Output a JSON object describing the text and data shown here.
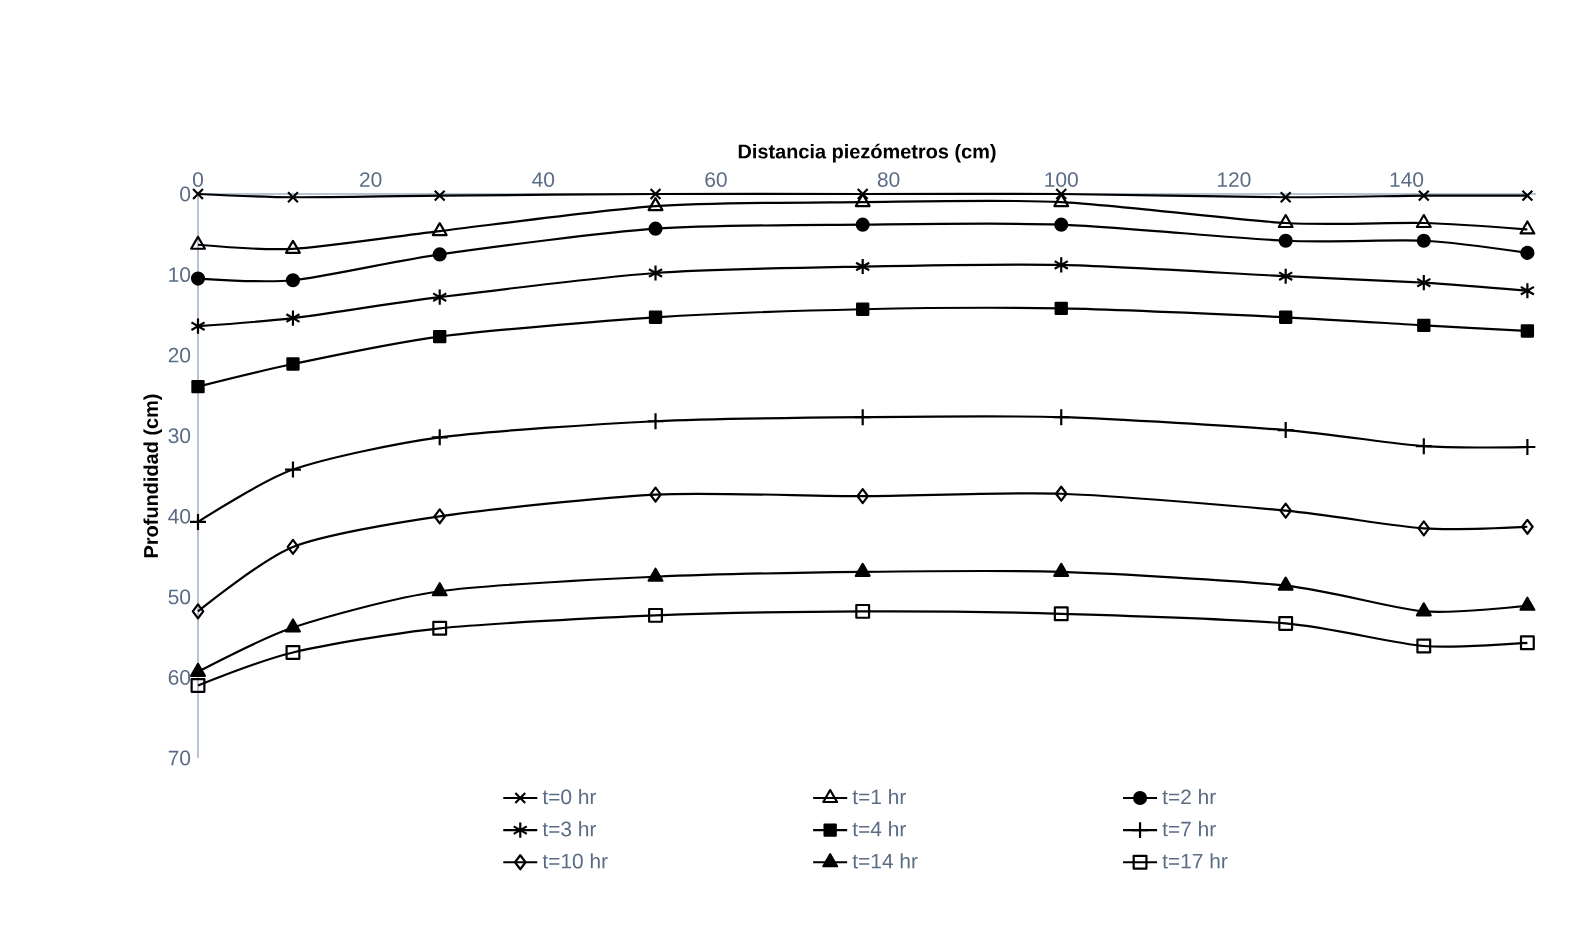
{
  "chart_data": {
    "type": "line",
    "xlabel": "Distancia piezómetros (cm)",
    "ylabel": "Profundidad (cm)",
    "x": [
      0,
      11,
      28,
      53,
      77,
      100,
      126,
      142,
      154
    ],
    "xlim": [
      0,
      155
    ],
    "xticks": [
      0,
      20,
      40,
      60,
      80,
      100,
      120,
      140
    ],
    "ylim": [
      70,
      0
    ],
    "yticks": [
      0,
      10,
      20,
      30,
      40,
      50,
      60,
      70
    ],
    "grid": false,
    "legend": "bottom",
    "line_style": "solid",
    "series": [
      {
        "name": "t=0 hr",
        "color": "#000000",
        "marker": "x",
        "values": [
          0,
          0.4,
          0.2,
          0,
          0,
          0,
          0.4,
          0.2,
          0.2
        ]
      },
      {
        "name": "t=1 hr",
        "color": "#000000",
        "marker": "triangle-open",
        "values": [
          6.3,
          6.8,
          4.6,
          1.5,
          1.0,
          1.0,
          3.6,
          3.6,
          4.4
        ]
      },
      {
        "name": "t=2 hr",
        "color": "#000000",
        "marker": "circle",
        "values": [
          10.5,
          10.7,
          7.5,
          4.3,
          3.8,
          3.8,
          5.8,
          5.8,
          7.3
        ]
      },
      {
        "name": "t=3 hr",
        "color": "#000000",
        "marker": "cross",
        "values": [
          16.4,
          15.4,
          12.8,
          9.8,
          9.0,
          8.8,
          10.2,
          11.0,
          12.0
        ]
      },
      {
        "name": "t=4 hr",
        "color": "#000000",
        "marker": "square",
        "values": [
          23.9,
          21.1,
          17.7,
          15.3,
          14.3,
          14.2,
          15.3,
          16.3,
          17.0
        ]
      },
      {
        "name": "t=7 hr",
        "color": "#000000",
        "marker": "plus",
        "values": [
          40.7,
          34.2,
          30.2,
          28.2,
          27.7,
          27.7,
          29.3,
          31.3,
          31.4
        ]
      },
      {
        "name": "t=10 hr",
        "color": "#000000",
        "marker": "diamond-open",
        "values": [
          51.8,
          43.8,
          40.0,
          37.3,
          37.5,
          37.2,
          39.3,
          41.5,
          41.3
        ]
      },
      {
        "name": "t=14 hr",
        "color": "#000000",
        "marker": "triangle",
        "values": [
          59.3,
          53.8,
          49.3,
          47.5,
          46.9,
          46.9,
          48.6,
          51.8,
          51.1
        ]
      },
      {
        "name": "t=17 hr",
        "color": "#000000",
        "marker": "square-open",
        "values": [
          61.0,
          56.9,
          53.9,
          52.3,
          51.8,
          52.1,
          53.3,
          56.1,
          55.7
        ]
      }
    ]
  }
}
